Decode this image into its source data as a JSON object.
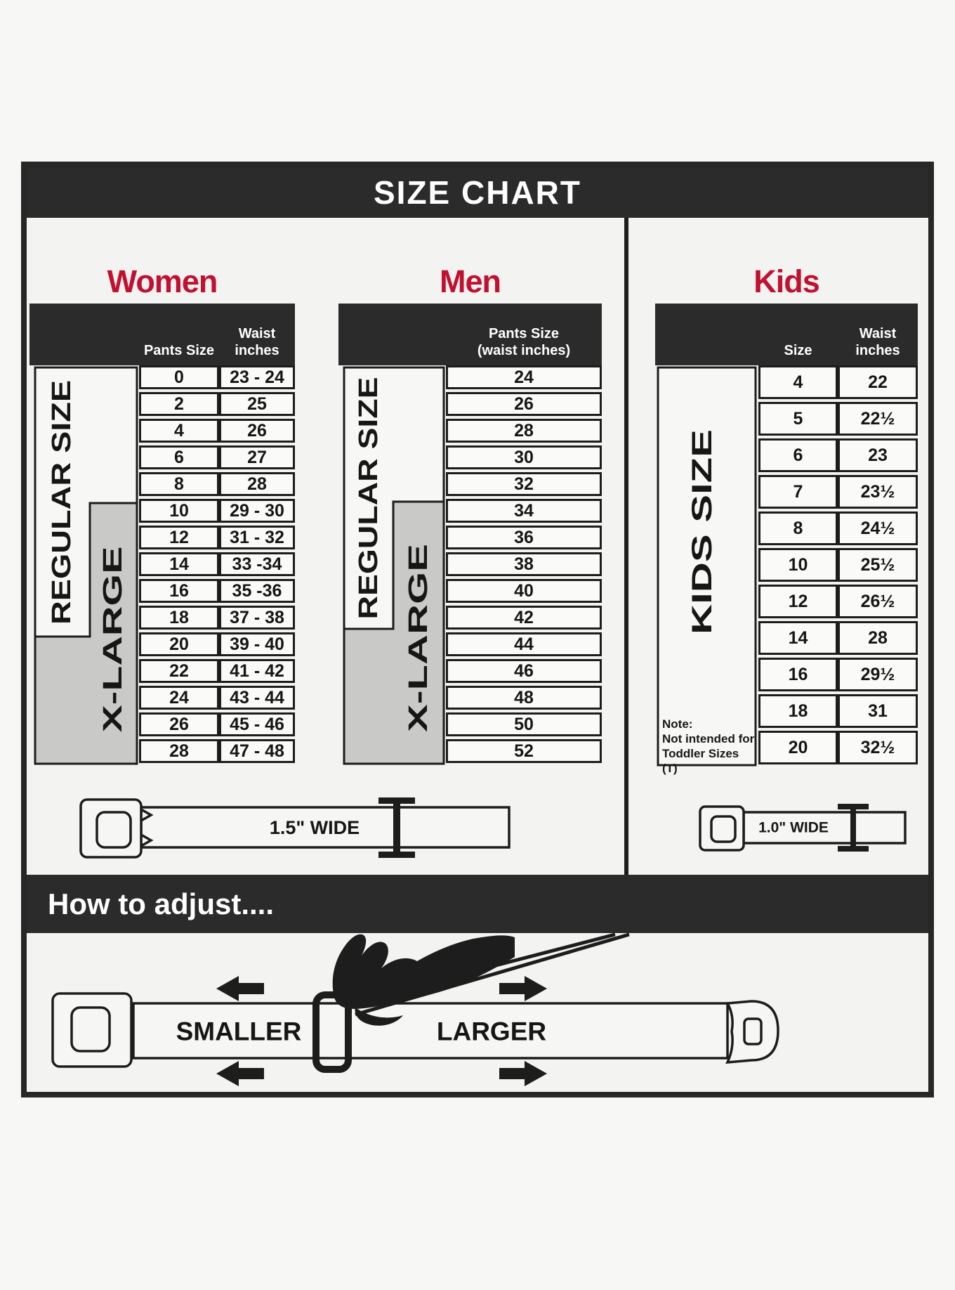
{
  "title": "SIZE CHART",
  "women": {
    "title": "Women",
    "pants_header": "Pants Size",
    "waist_header_1": "Waist",
    "waist_header_2": "inches",
    "regular_label": "REGULAR SIZE",
    "xlarge_label": "X-LARGE",
    "rows": [
      {
        "size": "0",
        "waist": "23 - 24"
      },
      {
        "size": "2",
        "waist": "25"
      },
      {
        "size": "4",
        "waist": "26"
      },
      {
        "size": "6",
        "waist": "27"
      },
      {
        "size": "8",
        "waist": "28"
      },
      {
        "size": "10",
        "waist": "29 - 30"
      },
      {
        "size": "12",
        "waist": "31 - 32"
      },
      {
        "size": "14",
        "waist": "33 -34"
      },
      {
        "size": "16",
        "waist": "35 -36"
      },
      {
        "size": "18",
        "waist": "37 - 38"
      },
      {
        "size": "20",
        "waist": "39 - 40"
      },
      {
        "size": "22",
        "waist": "41 - 42"
      },
      {
        "size": "24",
        "waist": "43 - 44"
      },
      {
        "size": "26",
        "waist": "45 - 46"
      },
      {
        "size": "28",
        "waist": "47 - 48"
      }
    ]
  },
  "men": {
    "title": "Men",
    "header_1": "Pants Size",
    "header_2": "(waist inches)",
    "regular_label": "REGULAR SIZE",
    "xlarge_label": "X-LARGE",
    "sizes": [
      "24",
      "26",
      "28",
      "30",
      "32",
      "34",
      "36",
      "38",
      "40",
      "42",
      "44",
      "46",
      "48",
      "50",
      "52"
    ]
  },
  "kids": {
    "title": "Kids",
    "size_header": "Size",
    "waist_header_1": "Waist",
    "waist_header_2": "inches",
    "side_label": "KIDS SIZE",
    "note": [
      "Note:",
      "Not intended for",
      "Toddler Sizes (T)"
    ],
    "rows": [
      {
        "size": "4",
        "waist": "22"
      },
      {
        "size": "5",
        "waist": "22½"
      },
      {
        "size": "6",
        "waist": "23"
      },
      {
        "size": "7",
        "waist": "23½"
      },
      {
        "size": "8",
        "waist": "24½"
      },
      {
        "size": "10",
        "waist": "25½"
      },
      {
        "size": "12",
        "waist": "26½"
      },
      {
        "size": "14",
        "waist": "28"
      },
      {
        "size": "16",
        "waist": "29½"
      },
      {
        "size": "18",
        "waist": "31"
      },
      {
        "size": "20",
        "waist": "32½"
      }
    ]
  },
  "belts": {
    "adult_label": "1.5\" WIDE",
    "kids_label": "1.0\" WIDE"
  },
  "adjust": {
    "title": "How to adjust....",
    "smaller": "SMALLER",
    "larger": "LARGER"
  },
  "colors": {
    "dark": "#2b2b2b",
    "red": "#c11030",
    "gray": "#c9c9c8"
  }
}
